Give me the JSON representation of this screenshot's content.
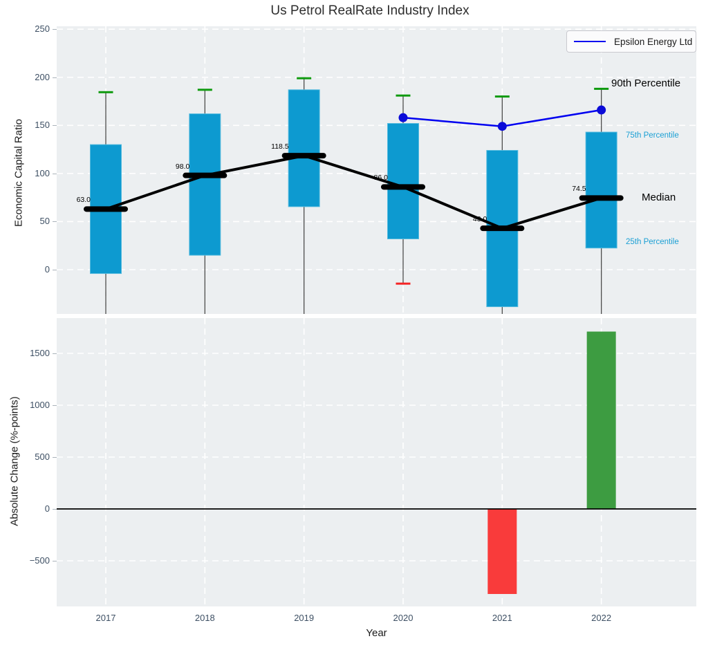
{
  "title": "Us Petrol RealRate Industry Index",
  "legend": {
    "series_label": "Epsilon Energy Ltd"
  },
  "axes": {
    "top": {
      "ylabel": "Economic Capital Ratio",
      "ytick_labels": [
        "0",
        "50",
        "100",
        "150",
        "200",
        "250"
      ],
      "yticks": [
        0,
        50,
        100,
        150,
        200,
        250
      ],
      "ylim": [
        -46,
        253
      ],
      "grid": "white-dashed"
    },
    "bottom": {
      "ylabel": "Absolute Change (%-points)",
      "xlabel": "Year",
      "ytick_labels": [
        "−500",
        "0",
        "500",
        "1000",
        "1500"
      ],
      "yticks": [
        -500,
        0,
        500,
        1000,
        1500
      ],
      "ylim": [
        -940,
        1840
      ],
      "grid": "white-dashed"
    }
  },
  "annotations": {
    "p90_label": "90th Percentile",
    "p75_label": "75th Percentile",
    "median_label": "Median",
    "p25_label": "25th Percentile"
  },
  "chart_data": {
    "type": "box+line+bar",
    "categories": [
      "2017",
      "2018",
      "2019",
      "2020",
      "2021",
      "2022"
    ],
    "top_panel": {
      "boxes": [
        {
          "year": "2017",
          "p90": 184.5,
          "p75": 130,
          "median": 63,
          "median_label": "63.0",
          "p25": -4,
          "p10": null
        },
        {
          "year": "2018",
          "p90": 187,
          "p75": 162,
          "median": 98,
          "median_label": "98.0",
          "p25": 15,
          "p10": null
        },
        {
          "year": "2019",
          "p90": 199,
          "p75": 187,
          "median": 118.5,
          "median_label": "118.5",
          "p25": 65.5,
          "p10": null
        },
        {
          "year": "2020",
          "p90": 181,
          "p75": 152,
          "median": 86,
          "median_label": "86.0",
          "p25": 32,
          "p10": -14.5
        },
        {
          "year": "2021",
          "p90": 180,
          "p75": 124,
          "median": 43,
          "median_label": "43.0",
          "p25": -38.5,
          "p10": null
        },
        {
          "year": "2022",
          "p90": 188,
          "p75": 143,
          "median": 74.5,
          "median_label": "74.5",
          "p25": 22.5,
          "p10": null
        }
      ],
      "median_line_series": [
        63,
        98,
        118.5,
        86,
        43,
        74.5
      ],
      "epsilon_line": {
        "name": "Epsilon Energy Ltd",
        "x": [
          "2020",
          "2021",
          "2022"
        ],
        "y": [
          158,
          149,
          166
        ]
      }
    },
    "bottom_panel": {
      "bars": [
        {
          "year": "2021",
          "value": -820
        },
        {
          "year": "2022",
          "value": 1710
        }
      ]
    }
  },
  "colors": {
    "panel_bg": "#eceff1",
    "box_fill": "#0d9ad0",
    "box_edge": "#54bade",
    "whisker": "#4b4b4b",
    "cap_90": "#0f9a0f",
    "cap_10": "#f52525",
    "median": "#000000",
    "epsilon": "#0000f0",
    "epsilon_dot": "#0b0bd8",
    "bar_neg": "#f93b3b",
    "bar_pos": "#3d9c41",
    "grid": "#ffffff",
    "zero_line": "#000000",
    "tick_text": "#3d4f63",
    "percentile_text": "#1a9fd4"
  }
}
